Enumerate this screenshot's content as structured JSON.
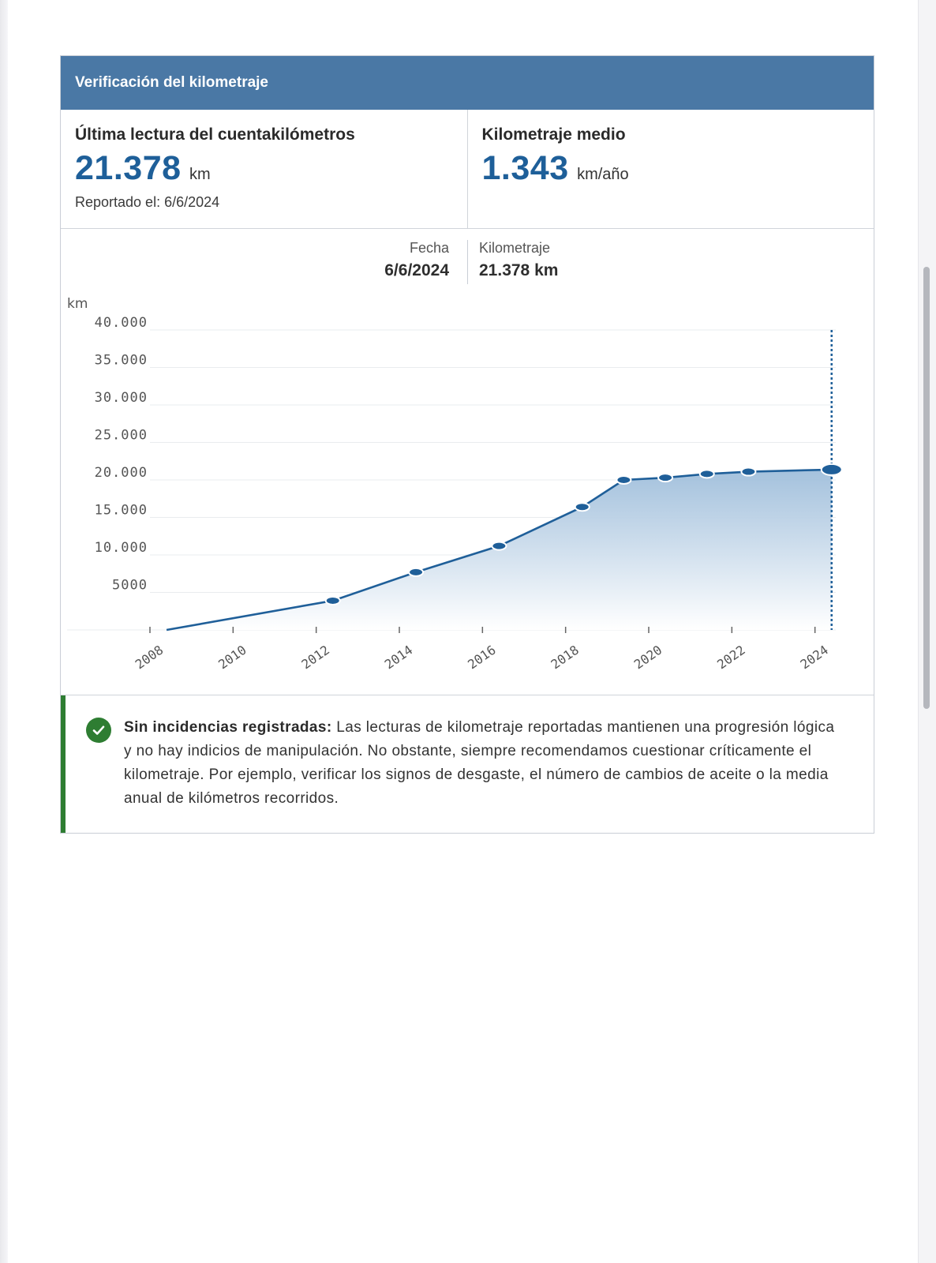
{
  "header": {
    "title": "Verificación del kilometraje"
  },
  "last_reading": {
    "title": "Última lectura del cuentakilómetros",
    "value": "21.378",
    "unit": "km",
    "reported": "Reportado el: 6/6/2024"
  },
  "average": {
    "title": "Kilometraje medio",
    "value": "1.343",
    "unit": "km/año"
  },
  "tooltip": {
    "date_label": "Fecha",
    "date_value": "6/6/2024",
    "mileage_label": "Kilometraje",
    "mileage_value": "21.378 km"
  },
  "chart_data": {
    "type": "area",
    "ylabel": "km",
    "ylim": [
      0,
      40000
    ],
    "ytick_values": [
      40000,
      35000,
      30000,
      25000,
      20000,
      15000,
      10000,
      5000
    ],
    "ytick_labels": [
      "40.000",
      "35.000",
      "30.000",
      "25.000",
      "20.000",
      "15.000",
      "10.000",
      "5000"
    ],
    "xlim": [
      2008,
      2024.5
    ],
    "xtick_values": [
      2008,
      2010,
      2012,
      2014,
      2016,
      2018,
      2020,
      2022,
      2024
    ],
    "xtick_labels": [
      "2008",
      "2010",
      "2012",
      "2014",
      "2016",
      "2018",
      "2020",
      "2022",
      "2024"
    ],
    "series": [
      {
        "x": [
          2008.4,
          2012.4,
          2014.4,
          2016.4,
          2018.4,
          2019.4,
          2020.4,
          2021.4,
          2022.4,
          2024.4
        ],
        "y": [
          0,
          3900,
          7700,
          11200,
          16400,
          20000,
          20300,
          20800,
          21100,
          21378
        ],
        "marked": [
          false,
          true,
          true,
          true,
          true,
          true,
          true,
          true,
          true,
          true
        ]
      }
    ],
    "highlight": {
      "x": 2024.4,
      "y": 21378
    },
    "colors": {
      "line": "#1f5f99",
      "marker": "#1f5f99",
      "fill_top": "#9fbedb",
      "fill_bottom": "#ffffff",
      "grid": "#e9ecef",
      "tick_text": "#555555",
      "highlight_line": "#1f5f99"
    },
    "grid": true,
    "legend": "none"
  },
  "notice": {
    "bold": "Sin incidencias registradas:",
    "text": " Las lecturas de kilometraje reportadas mantienen una progresión lógica y no hay indicios de manipulación. No obstante, siempre recomendamos cuestionar críticamente el kilometraje. Por ejemplo, verificar los signos de desgaste, el número de cambios de aceite o la media anual de kilómetros recorridos.",
    "icon": "check-circle-icon",
    "color": "#2e7d32"
  }
}
